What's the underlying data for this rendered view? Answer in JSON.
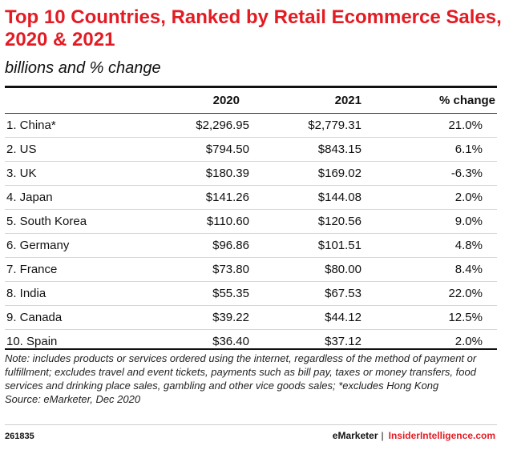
{
  "header": {
    "title": "Top 10 Countries, Ranked by Retail Ecommerce Sales, 2020 & 2021",
    "subtitle": "billions and % change"
  },
  "chart_data": {
    "type": "table",
    "title": "Top 10 Countries, Ranked by Retail Ecommerce Sales, 2020 & 2021",
    "subtitle": "billions and % change",
    "columns": [
      "",
      "2020",
      "2021",
      "% change"
    ],
    "rows": [
      {
        "country": "1. China*",
        "y2020": "$2,296.95",
        "y2021": "$2,779.31",
        "change": "21.0%"
      },
      {
        "country": "2. US",
        "y2020": "$794.50",
        "y2021": "$843.15",
        "change": "6.1%"
      },
      {
        "country": "3. UK",
        "y2020": "$180.39",
        "y2021": "$169.02",
        "change": "-6.3%"
      },
      {
        "country": "4. Japan",
        "y2020": "$141.26",
        "y2021": "$144.08",
        "change": "2.0%"
      },
      {
        "country": "5. South Korea",
        "y2020": "$110.60",
        "y2021": "$120.56",
        "change": "9.0%"
      },
      {
        "country": "6. Germany",
        "y2020": "$96.86",
        "y2021": "$101.51",
        "change": "4.8%"
      },
      {
        "country": "7. France",
        "y2020": "$73.80",
        "y2021": "$80.00",
        "change": "8.4%"
      },
      {
        "country": "8. India",
        "y2020": "$55.35",
        "y2021": "$67.53",
        "change": "22.0%"
      },
      {
        "country": "9. Canada",
        "y2020": "$39.22",
        "y2021": "$44.12",
        "change": "12.5%"
      },
      {
        "country": "10. Spain",
        "y2020": "$36.40",
        "y2021": "$37.12",
        "change": "2.0%"
      }
    ]
  },
  "notes": {
    "note": "Note: includes products or services ordered using the internet, regardless of the method of payment or fulfillment; excludes travel and event tickets, payments such as bill pay, taxes or money transfers, food services and drinking place sales, gambling and other vice goods sales; *excludes Hong Kong",
    "source": "Source: eMarketer, Dec 2020"
  },
  "footer": {
    "chart_id": "261835",
    "brand": "eMarketer",
    "separator": "|",
    "site": "InsiderIntelligence.com"
  },
  "colors": {
    "accent": "#e31b23",
    "text": "#111111"
  }
}
